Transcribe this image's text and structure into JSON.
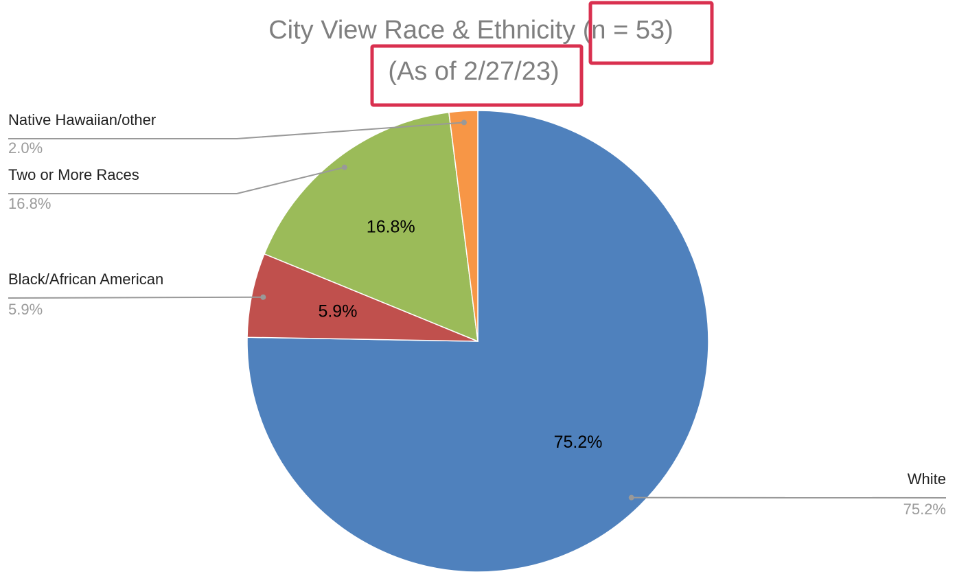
{
  "chart_data": {
    "type": "pie",
    "title": "City View Race & Ethnicity",
    "title_note": "(n = 53)",
    "subtitle": "(As of 2/27/23)",
    "categories": [
      "White",
      "Black/African American",
      "Two or More Races",
      "Native Hawaiian/other"
    ],
    "values": [
      75.2,
      5.9,
      16.8,
      2.0
    ],
    "value_labels": [
      "75.2%",
      "5.9%",
      "16.8%",
      "2.0%"
    ],
    "colors": [
      "#4f81bd",
      "#c0504d",
      "#9bbb59",
      "#f79646"
    ]
  }
}
